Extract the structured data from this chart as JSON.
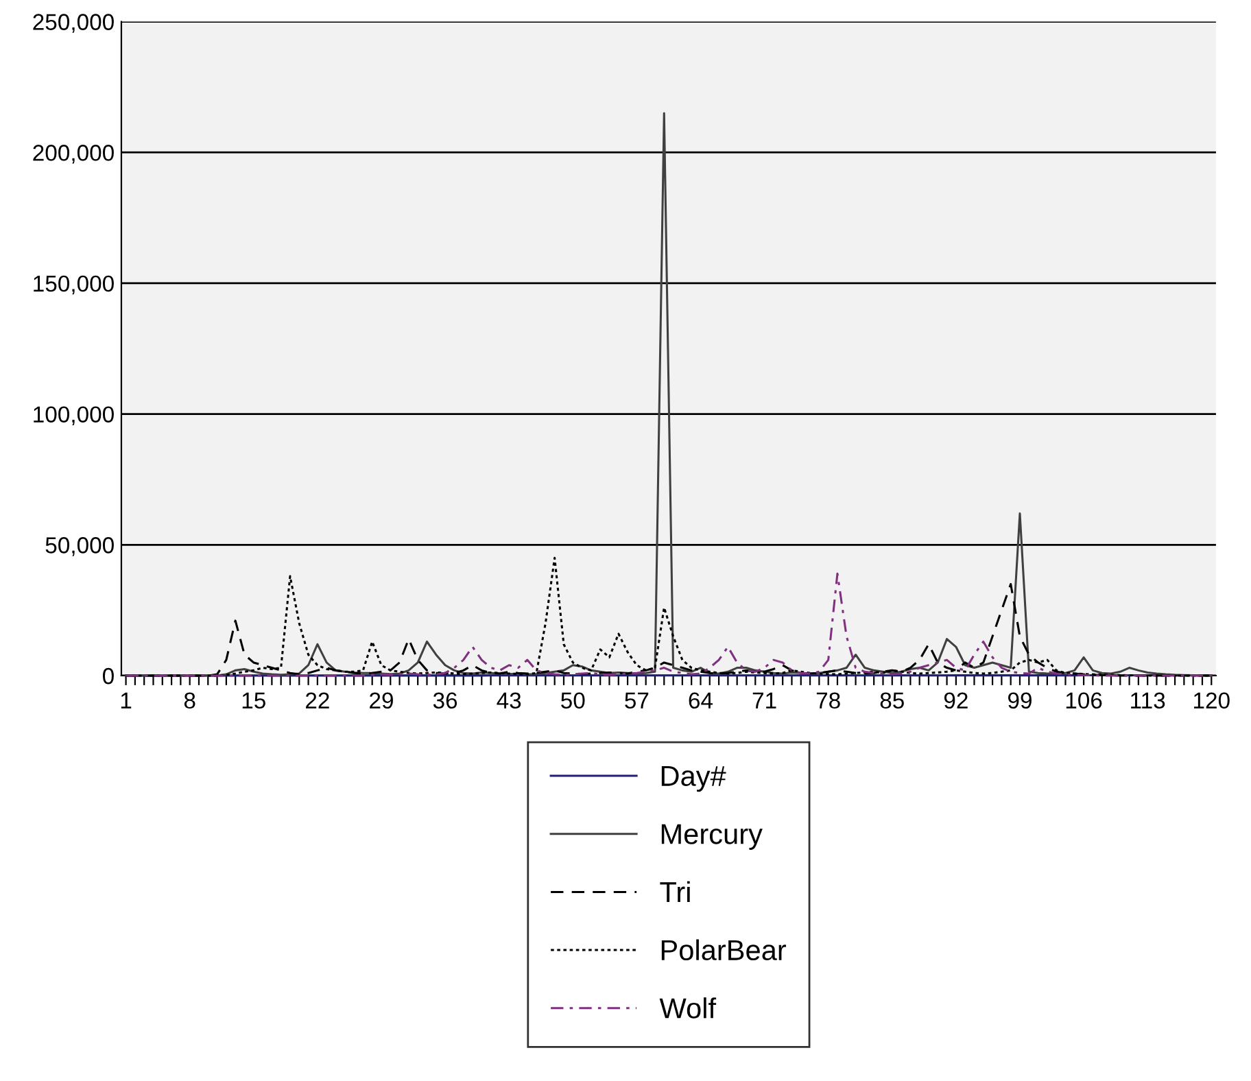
{
  "chart_data": {
    "type": "line",
    "categories": [
      "1",
      null,
      null,
      null,
      null,
      null,
      null,
      "8",
      null,
      null,
      null,
      null,
      null,
      null,
      "15",
      null,
      null,
      null,
      null,
      null,
      null,
      "22",
      null,
      null,
      null,
      null,
      null,
      null,
      "29",
      null,
      null,
      null,
      null,
      null,
      null,
      "36",
      null,
      null,
      null,
      null,
      null,
      null,
      "43",
      null,
      null,
      null,
      null,
      null,
      null,
      "50",
      null,
      null,
      null,
      null,
      null,
      null,
      "57",
      null,
      null,
      null,
      null,
      null,
      null,
      "64",
      null,
      null,
      null,
      null,
      null,
      null,
      "71",
      null,
      null,
      null,
      null,
      null,
      null,
      "78",
      null,
      null,
      null,
      null,
      null,
      null,
      "85",
      null,
      null,
      null,
      null,
      null,
      null,
      "92",
      null,
      null,
      null,
      null,
      null,
      null,
      "99",
      null,
      null,
      null,
      null,
      null,
      null,
      "106",
      null,
      null,
      null,
      null,
      null,
      null,
      "113",
      null,
      null,
      null,
      null,
      null,
      null,
      "120"
    ],
    "series": [
      {
        "name": "Day#",
        "color": "#1f1f7a",
        "line_style": "solid",
        "values": [
          1,
          2,
          3,
          4,
          5,
          6,
          7,
          8,
          9,
          10,
          11,
          12,
          13,
          14,
          15,
          16,
          17,
          18,
          19,
          20,
          21,
          22,
          23,
          24,
          25,
          26,
          27,
          28,
          29,
          30,
          31,
          32,
          33,
          34,
          35,
          36,
          37,
          38,
          39,
          40,
          41,
          42,
          43,
          44,
          45,
          46,
          47,
          48,
          49,
          50,
          51,
          52,
          53,
          54,
          55,
          56,
          57,
          58,
          59,
          60,
          61,
          62,
          63,
          64,
          65,
          66,
          67,
          68,
          69,
          70,
          71,
          72,
          73,
          74,
          75,
          76,
          77,
          78,
          79,
          80,
          81,
          82,
          83,
          84,
          85,
          86,
          87,
          88,
          89,
          90,
          91,
          92,
          93,
          94,
          95,
          96,
          97,
          98,
          99,
          100,
          101,
          102,
          103,
          104,
          105,
          106,
          107,
          108,
          109,
          110,
          111,
          112,
          113,
          114,
          115,
          116,
          117,
          118,
          119,
          120
        ]
      },
      {
        "name": "Mercury",
        "color": "#404040",
        "line_style": "solid",
        "values": [
          0,
          0,
          0,
          0,
          0,
          0,
          0,
          0,
          0,
          0,
          0,
          500,
          2000,
          2500,
          1500,
          800,
          500,
          300,
          500,
          800,
          4000,
          12000,
          5000,
          2000,
          1500,
          1200,
          1000,
          1000,
          800,
          600,
          800,
          2000,
          5000,
          13000,
          8000,
          4000,
          2000,
          1000,
          800,
          1200,
          1000,
          800,
          600,
          800,
          500,
          600,
          1000,
          1500,
          2000,
          4000,
          3500,
          2000,
          1500,
          1000,
          1200,
          1000,
          800,
          1000,
          1500,
          215000,
          3000,
          2000,
          1500,
          3000,
          1000,
          800,
          1500,
          3000,
          3000,
          2000,
          1500,
          1000,
          800,
          1200,
          1000,
          800,
          1000,
          1500,
          2000,
          3000,
          8000,
          3000,
          2000,
          1500,
          1000,
          1500,
          2500,
          3000,
          2000,
          5000,
          14000,
          11000,
          4000,
          3000,
          4000,
          5000,
          4000,
          3000,
          62000,
          1500,
          1000,
          800,
          800,
          1000,
          2000,
          7000,
          2000,
          1000,
          800,
          1500,
          3000,
          2000,
          1200,
          800,
          500,
          300,
          200,
          100,
          0,
          0
        ]
      },
      {
        "name": "Tri",
        "color": "#000000",
        "line_style": "dashed",
        "values": [
          0,
          0,
          0,
          0,
          0,
          0,
          0,
          0,
          0,
          0,
          500,
          6000,
          21000,
          8000,
          5000,
          4000,
          3000,
          2000,
          1000,
          500,
          1000,
          2000,
          3000,
          2000,
          1500,
          1000,
          800,
          1000,
          1500,
          2000,
          5000,
          14000,
          6000,
          2000,
          1000,
          800,
          1000,
          2000,
          4000,
          2000,
          1000,
          800,
          1500,
          1000,
          800,
          1000,
          1500,
          2000,
          1000,
          800,
          600,
          800,
          1000,
          1200,
          1000,
          800,
          1500,
          2000,
          3000,
          5000,
          4000,
          3000,
          2000,
          1500,
          1000,
          800,
          1000,
          1500,
          2000,
          1500,
          1500,
          2500,
          4000,
          2000,
          1000,
          800,
          1000,
          1500,
          2000,
          1500,
          1000,
          800,
          1000,
          1500,
          2000,
          1500,
          3000,
          6000,
          12000,
          5000,
          3000,
          2000,
          5000,
          3000,
          5000,
          15000,
          25000,
          35000,
          15000,
          8000,
          5000,
          3000,
          1500,
          1000,
          800,
          500,
          300,
          200,
          100,
          0,
          0,
          0,
          0,
          0,
          0,
          0,
          0,
          0,
          0,
          0
        ]
      },
      {
        "name": "PolarBear",
        "color": "#000000",
        "line_style": "dotted",
        "values": [
          0,
          0,
          0,
          0,
          0,
          0,
          0,
          0,
          0,
          0,
          0,
          300,
          800,
          1500,
          2000,
          3000,
          2500,
          3000,
          38000,
          20000,
          8000,
          4000,
          2500,
          2000,
          1500,
          1500,
          2000,
          13000,
          4000,
          2000,
          1500,
          1000,
          800,
          1000,
          1200,
          1000,
          800,
          600,
          800,
          1000,
          1200,
          1000,
          800,
          600,
          500,
          1000,
          20000,
          45000,
          12000,
          5000,
          3000,
          2000,
          10000,
          7000,
          16000,
          9000,
          4000,
          2000,
          3000,
          26000,
          15000,
          6000,
          3000,
          2000,
          1500,
          1000,
          800,
          1000,
          1500,
          1200,
          1000,
          800,
          1000,
          2000,
          1500,
          1000,
          800,
          600,
          500,
          800,
          1000,
          1200,
          1500,
          1000,
          2000,
          1500,
          1000,
          800,
          1000,
          1200,
          1500,
          2000,
          1500,
          1000,
          800,
          1000,
          1500,
          2000,
          5000,
          6000,
          5000,
          6000,
          2000,
          1000,
          800,
          600,
          500,
          400,
          300,
          200,
          100,
          0,
          0,
          0,
          0,
          0,
          0,
          0,
          0,
          0
        ]
      },
      {
        "name": "Wolf",
        "color": "#7f307f",
        "line_style": "dashdot",
        "values": [
          0,
          0,
          0,
          0,
          0,
          0,
          0,
          0,
          0,
          0,
          0,
          0,
          0,
          0,
          0,
          0,
          0,
          0,
          0,
          0,
          0,
          0,
          0,
          0,
          0,
          0,
          0,
          300,
          500,
          300,
          500,
          800,
          500,
          300,
          500,
          1000,
          3000,
          6000,
          11000,
          6000,
          3000,
          2000,
          4000,
          3000,
          6000,
          2000,
          1000,
          500,
          300,
          500,
          800,
          1000,
          500,
          300,
          500,
          800,
          1000,
          1500,
          2000,
          3000,
          1500,
          1000,
          500,
          800,
          3000,
          6000,
          11000,
          5000,
          2000,
          1500,
          3000,
          6000,
          5000,
          2000,
          1000,
          800,
          1500,
          6000,
          39000,
          15000,
          3000,
          1500,
          1000,
          800,
          500,
          800,
          1500,
          3000,
          4000,
          5000,
          6000,
          3000,
          2000,
          8000,
          13000,
          7000,
          3000,
          1500,
          1000,
          800,
          3000,
          1500,
          800,
          500,
          300,
          200,
          100,
          0,
          0,
          0,
          0,
          0,
          0,
          0,
          0,
          0,
          0,
          0,
          0,
          0
        ]
      }
    ],
    "ylim": [
      0,
      250000
    ],
    "yticks": [
      {
        "value": 0,
        "label": "0"
      },
      {
        "value": 50000,
        "label": "50,000"
      },
      {
        "value": 100000,
        "label": "100,000"
      },
      {
        "value": 150000,
        "label": "150,000"
      },
      {
        "value": 200000,
        "label": "200,000"
      },
      {
        "value": 250000,
        "label": "250,000"
      }
    ],
    "grid": "y",
    "legend": "bottom"
  }
}
